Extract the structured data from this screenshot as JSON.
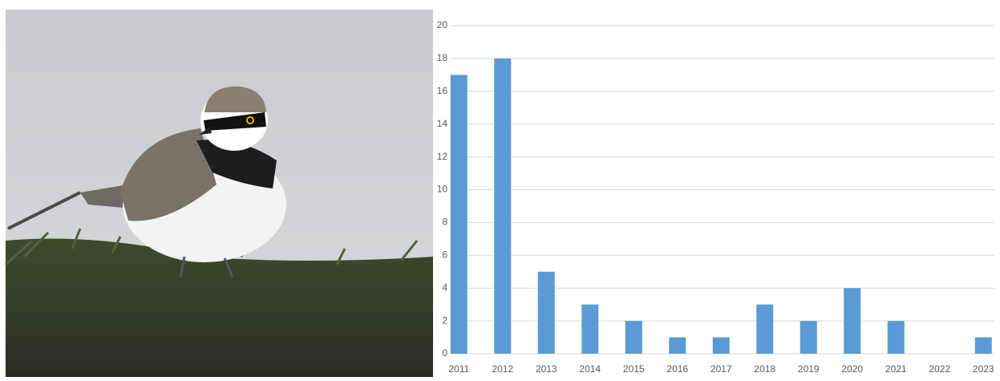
{
  "chart_data": {
    "type": "bar",
    "categories": [
      "2011",
      "2012",
      "2013",
      "2014",
      "2015",
      "2016",
      "2017",
      "2018",
      "2019",
      "2020",
      "2021",
      "2022",
      "2023"
    ],
    "values": [
      17,
      18,
      5,
      3,
      2,
      1,
      1,
      3,
      2,
      4,
      2,
      0,
      1
    ],
    "color": "#5b9bd5",
    "ylim": [
      0,
      20
    ],
    "yticks": [
      0,
      2,
      4,
      6,
      8,
      10,
      12,
      14,
      16,
      18,
      20
    ],
    "grid": true
  }
}
